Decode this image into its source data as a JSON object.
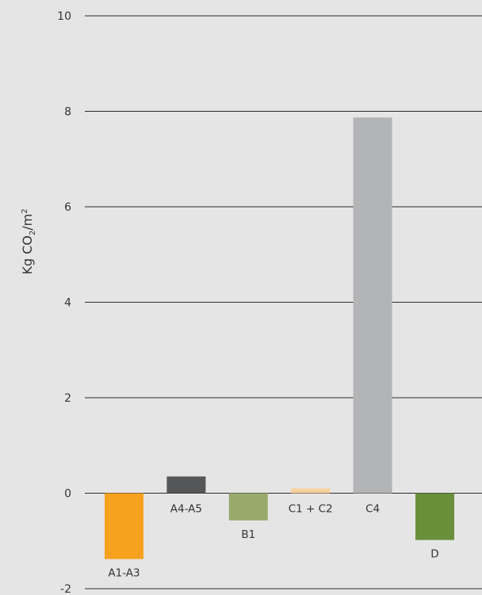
{
  "chart_data": {
    "type": "bar",
    "title": "",
    "xlabel": "",
    "ylabel": {
      "main": "Kg CO",
      "sub": "2",
      "mid": "/m",
      "sup": "2"
    },
    "ylim": [
      -2,
      10
    ],
    "yticks": [
      -2,
      0,
      2,
      4,
      6,
      8,
      10
    ],
    "grid": true,
    "legend": "none",
    "categories": [
      "A1-A3",
      "A4-A5",
      "B1",
      "C1 + C2",
      "C4",
      "D"
    ],
    "values": [
      -1.38,
      0.35,
      -0.57,
      0.1,
      7.87,
      -0.98
    ],
    "colors": [
      "#f6a21f",
      "#555657",
      "#9aaa6c",
      "#f6cf9a",
      "#b3b4b6",
      "#698f3b"
    ]
  }
}
